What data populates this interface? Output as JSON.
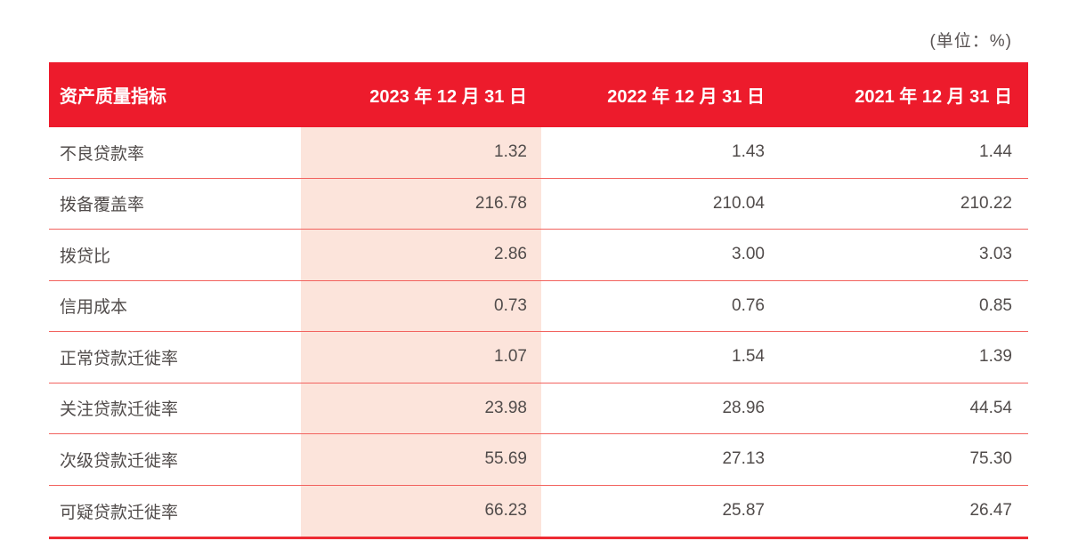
{
  "page": {
    "unit_label": "(单位：%)"
  },
  "colors": {
    "brand_red": "#ED1B2C",
    "highlight_pink": "#FCE4DB",
    "divider": "#F2625E",
    "bottom_border": "#ED2B33",
    "body_text": "#514C4B"
  },
  "table": {
    "headers": [
      "资产质量指标",
      "2023 年 12 月 31 日",
      "2022 年 12 月 31 日",
      "2021 年 12 月 31 日"
    ],
    "highlighted_column": "2023 年 12 月 31 日",
    "rows": [
      {
        "label": "不良贷款率",
        "values": [
          "1.32",
          "1.43",
          "1.44"
        ]
      },
      {
        "label": "拨备覆盖率",
        "values": [
          "216.78",
          "210.04",
          "210.22"
        ]
      },
      {
        "label": "拨贷比",
        "values": [
          "2.86",
          "3.00",
          "3.03"
        ]
      },
      {
        "label": "信用成本",
        "values": [
          "0.73",
          "0.76",
          "0.85"
        ]
      },
      {
        "label": "正常贷款迁徙率",
        "values": [
          "1.07",
          "1.54",
          "1.39"
        ]
      },
      {
        "label": "关注贷款迁徙率",
        "values": [
          "23.98",
          "28.96",
          "44.54"
        ]
      },
      {
        "label": "次级贷款迁徙率",
        "values": [
          "55.69",
          "27.13",
          "75.30"
        ]
      },
      {
        "label": "可疑贷款迁徙率",
        "values": [
          "66.23",
          "25.87",
          "26.47"
        ]
      }
    ]
  }
}
